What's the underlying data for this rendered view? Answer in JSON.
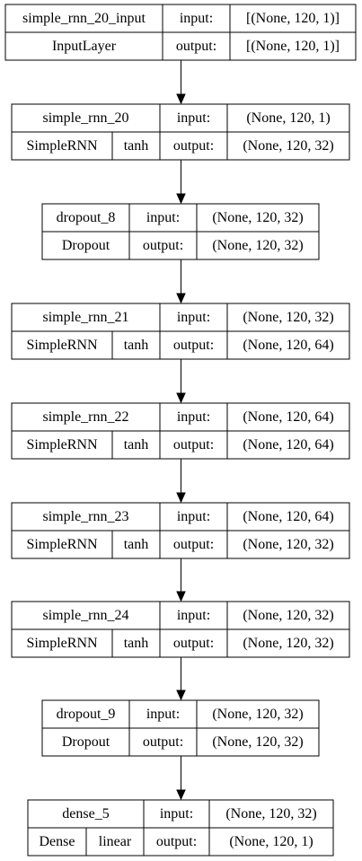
{
  "nodes": [
    {
      "name": "simple_rnn_20_input",
      "type": "InputLayer",
      "activation": "",
      "input": "[(None, 120, 1)]",
      "output": "[(None, 120, 1)]",
      "input_label": "input:",
      "output_label": "output:"
    },
    {
      "name": "simple_rnn_20",
      "type": "SimpleRNN",
      "activation": "tanh",
      "input": "(None, 120, 1)",
      "output": "(None, 120, 32)",
      "input_label": "input:",
      "output_label": "output:"
    },
    {
      "name": "dropout_8",
      "type": "Dropout",
      "activation": "",
      "input": "(None, 120, 32)",
      "output": "(None, 120, 32)",
      "input_label": "input:",
      "output_label": "output:"
    },
    {
      "name": "simple_rnn_21",
      "type": "SimpleRNN",
      "activation": "tanh",
      "input": "(None, 120, 32)",
      "output": "(None, 120, 64)",
      "input_label": "input:",
      "output_label": "output:"
    },
    {
      "name": "simple_rnn_22",
      "type": "SimpleRNN",
      "activation": "tanh",
      "input": "(None, 120, 64)",
      "output": "(None, 120, 64)",
      "input_label": "input:",
      "output_label": "output:"
    },
    {
      "name": "simple_rnn_23",
      "type": "SimpleRNN",
      "activation": "tanh",
      "input": "(None, 120, 64)",
      "output": "(None, 120, 32)",
      "input_label": "input:",
      "output_label": "output:"
    },
    {
      "name": "simple_rnn_24",
      "type": "SimpleRNN",
      "activation": "tanh",
      "input": "(None, 120, 32)",
      "output": "(None, 120, 32)",
      "input_label": "input:",
      "output_label": "output:"
    },
    {
      "name": "dropout_9",
      "type": "Dropout",
      "activation": "",
      "input": "(None, 120, 32)",
      "output": "(None, 120, 32)",
      "input_label": "input:",
      "output_label": "output:"
    },
    {
      "name": "dense_5",
      "type": "Dense",
      "activation": "linear",
      "input": "(None, 120, 32)",
      "output": "(None, 120, 1)",
      "input_label": "input:",
      "output_label": "output:"
    }
  ],
  "edges": [
    [
      0,
      1
    ],
    [
      1,
      2
    ],
    [
      2,
      3
    ],
    [
      3,
      4
    ],
    [
      4,
      5
    ],
    [
      5,
      6
    ],
    [
      6,
      7
    ],
    [
      7,
      8
    ]
  ],
  "colors": {
    "stroke": "#000000",
    "background": "#ffffff",
    "text": "#000000"
  }
}
